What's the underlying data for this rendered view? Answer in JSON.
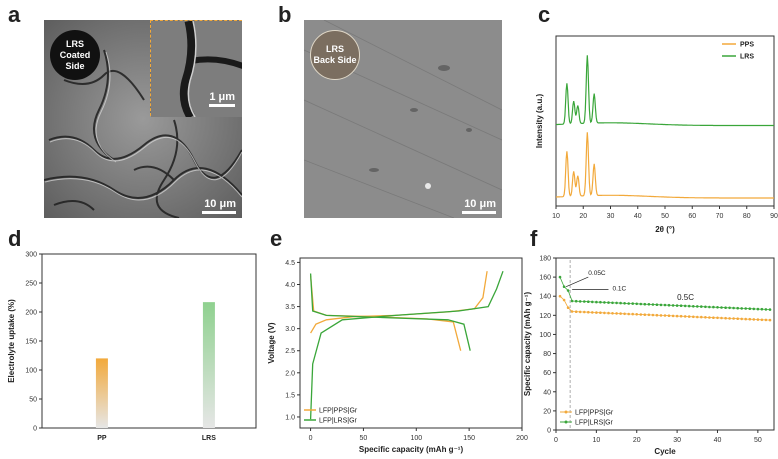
{
  "panel_labels": [
    "a",
    "b",
    "c",
    "d",
    "e",
    "f"
  ],
  "panel_a": {
    "badge_line1": "LRS",
    "badge_line2": "Coated Side",
    "inset_scale": "1 μm",
    "scale": "10 μm"
  },
  "panel_b": {
    "badge_line1": "LRS",
    "badge_line2": "Back Side",
    "scale": "10 μm"
  },
  "chart_data": [
    {
      "id": "c",
      "type": "line",
      "xlabel": "2θ (°)",
      "ylabel": "Intensity (a.u.)",
      "xlim": [
        10,
        90
      ],
      "xticks": [
        "10",
        "20",
        "30",
        "40",
        "50",
        "60",
        "70",
        "80",
        "90"
      ],
      "legend_position": "top-right",
      "colors": {
        "PPS": "#f2a93b",
        "LRS": "#3aa63a"
      },
      "series": [
        {
          "name": "PPS",
          "peaks": [
            [
              14.0,
              1.0
            ],
            [
              16.5,
              0.55
            ],
            [
              18.0,
              0.45
            ],
            [
              21.5,
              1.4
            ],
            [
              24.0,
              0.7
            ]
          ],
          "baseline": 0.0
        },
        {
          "name": "LRS",
          "peaks": [
            [
              14.0,
              0.9
            ],
            [
              16.5,
              0.5
            ],
            [
              18.0,
              0.4
            ],
            [
              21.5,
              1.5
            ],
            [
              24.0,
              0.65
            ]
          ],
          "baseline": 1.6
        }
      ]
    },
    {
      "id": "d",
      "type": "bar",
      "ylabel": "Electrolyte uptake (%)",
      "ylim": [
        0,
        300
      ],
      "yticks": [
        "0",
        "50",
        "100",
        "150",
        "200",
        "250",
        "300"
      ],
      "categories": [
        "PP",
        "LRS"
      ],
      "values": [
        120,
        217
      ],
      "colors": {
        "PP": "#f2a93b",
        "LRS": "#8fd18f"
      }
    },
    {
      "id": "e",
      "type": "line",
      "xlabel": "Specific capacity (mAh g⁻¹)",
      "ylabel": "Voltage (V)",
      "xlim": [
        -10,
        200
      ],
      "ylim": [
        0.75,
        4.6
      ],
      "xticks": [
        "0",
        "50",
        "100",
        "150",
        "200"
      ],
      "yticks": [
        "1.0",
        "1.5",
        "2.0",
        "2.5",
        "3.0",
        "3.5",
        "4.0",
        "4.5"
      ],
      "legend_position": "bottom-left",
      "colors": {
        "LFP|PPS|Gr": "#f2a93b",
        "LFP|LRS|Gr": "#3aa63a"
      },
      "series": [
        {
          "name": "LFP|PPS|Gr",
          "charge": [
            [
              0,
              2.9
            ],
            [
              5,
              3.1
            ],
            [
              15,
              3.2
            ],
            [
              40,
              3.27
            ],
            [
              80,
              3.3
            ],
            [
              130,
              3.38
            ],
            [
              155,
              3.45
            ],
            [
              163,
              3.7
            ],
            [
              167,
              4.3
            ]
          ],
          "discharge": [
            [
              0,
              4.2
            ],
            [
              3,
              3.4
            ],
            [
              15,
              3.3
            ],
            [
              60,
              3.27
            ],
            [
              110,
              3.22
            ],
            [
              135,
              3.15
            ],
            [
              142,
              2.5
            ]
          ]
        },
        {
          "name": "LFP|LRS|Gr",
          "charge": [
            [
              0,
              0.95
            ],
            [
              2,
              2.2
            ],
            [
              10,
              2.9
            ],
            [
              30,
              3.2
            ],
            [
              80,
              3.3
            ],
            [
              140,
              3.4
            ],
            [
              168,
              3.5
            ],
            [
              176,
              3.9
            ],
            [
              182,
              4.3
            ]
          ],
          "discharge": [
            [
              0,
              4.25
            ],
            [
              2,
              3.4
            ],
            [
              15,
              3.3
            ],
            [
              70,
              3.25
            ],
            [
              130,
              3.2
            ],
            [
              145,
              3.1
            ],
            [
              151,
              2.5
            ]
          ]
        }
      ]
    },
    {
      "id": "f",
      "type": "scatter",
      "xlabel": "Cycle",
      "ylabel": "Specific capacity (mAh g⁻¹)",
      "xlim": [
        0,
        54
      ],
      "ylim": [
        0,
        180
      ],
      "xticks": [
        "0",
        "10",
        "20",
        "30",
        "40",
        "50"
      ],
      "yticks": [
        "0",
        "20",
        "40",
        "60",
        "80",
        "100",
        "120",
        "140",
        "160",
        "180"
      ],
      "legend_position": "bottom-left",
      "annotations": [
        "0.05C",
        "0.1C",
        "0.5C"
      ],
      "colors": {
        "LFP|PPS|Gr": "#f2a93b",
        "LFP|LRS|Gr": "#3aa63a"
      },
      "series": [
        {
          "name": "LFP|PPS|Gr",
          "first": [
            [
              1,
              140
            ],
            [
              2,
              136
            ],
            [
              3,
              128
            ]
          ],
          "start": 124,
          "end": 115
        },
        {
          "name": "LFP|LRS|Gr",
          "first": [
            [
              1,
              160
            ],
            [
              2,
              150
            ],
            [
              3,
              146
            ]
          ],
          "start": 135,
          "end": 126
        }
      ]
    }
  ]
}
